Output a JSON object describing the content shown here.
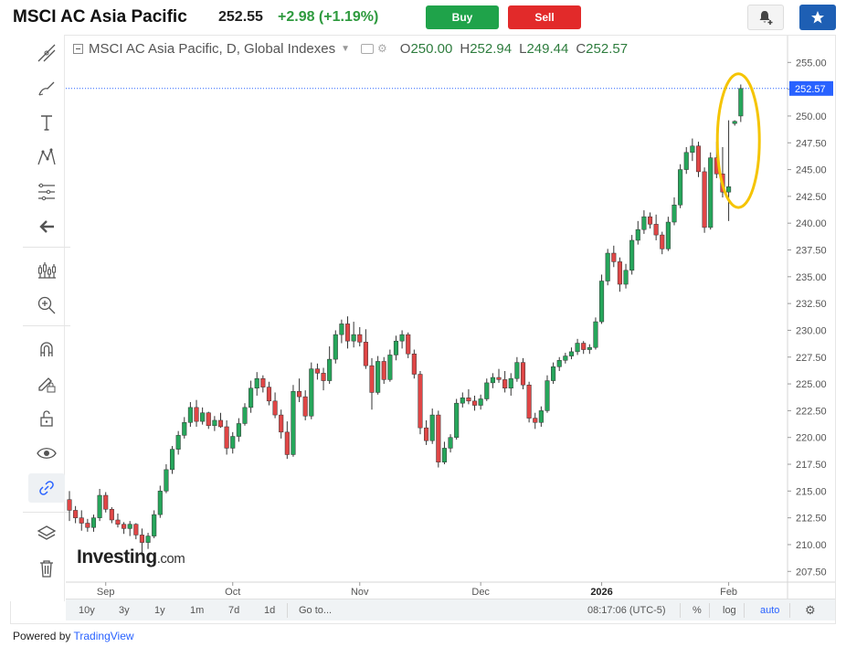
{
  "header": {
    "title": "MSCI AC Asia Pacific",
    "price": "252.55",
    "change": "+2.98 (+1.19%)",
    "buy_label": "Buy",
    "sell_label": "Sell"
  },
  "legend": {
    "symbol": "MSCI AC Asia Pacific, D, Global Indexes",
    "open_label": "O",
    "open": "250.00",
    "high_label": "H",
    "high": "252.94",
    "low_label": "L",
    "low": "249.44",
    "close_label": "C",
    "close": "252.57"
  },
  "logo": {
    "main": "Investing",
    "suffix": ".com"
  },
  "bottom_bar": {
    "ranges": [
      "10y",
      "3y",
      "1y",
      "1m",
      "7d",
      "1d"
    ],
    "goto_label": "Go to...",
    "time": "08:17:06 (UTC-5)",
    "percent_label": "%",
    "log_label": "log",
    "auto_label": "auto"
  },
  "powered_by": {
    "prefix": "Powered by ",
    "link": "TradingView"
  },
  "colors": {
    "up": "#26a65b",
    "down": "#e04646",
    "accent": "#2962ff",
    "highlight": "#f5c400"
  },
  "toolbar_icons": [
    "crosshair-draw-icon",
    "brush-icon",
    "text-icon",
    "pattern-icon",
    "fib-icon",
    "back-arrow-icon",
    "indicators-icon",
    "zoom-icon",
    "magnet-icon",
    "lock-drawing-icon",
    "unlock-icon",
    "eye-icon",
    "link-icon",
    "layers-icon",
    "trash-icon"
  ],
  "chart_data": {
    "type": "candlestick",
    "y_ticks": [
      "207.50",
      "210.00",
      "212.50",
      "215.00",
      "217.50",
      "220.00",
      "222.50",
      "225.00",
      "227.50",
      "230.00",
      "232.50",
      "235.00",
      "237.50",
      "240.00",
      "242.50",
      "245.00",
      "247.50",
      "250.00",
      "252.50",
      "255.00"
    ],
    "y_range": [
      206.5,
      257.5
    ],
    "x_labels": [
      "Sep",
      "Oct",
      "Nov",
      "Dec",
      "2026",
      "Feb"
    ],
    "x_label_index": [
      6,
      27,
      48,
      68,
      88,
      109
    ],
    "last_price_label": "252.57",
    "last_price": 252.57,
    "candles": [
      [
        214.2,
        215.0,
        212.2,
        213.2
      ],
      [
        213.2,
        213.6,
        212.0,
        212.5
      ],
      [
        212.5,
        213.2,
        211.3,
        212.0
      ],
      [
        212.0,
        212.4,
        211.2,
        211.6
      ],
      [
        211.6,
        212.8,
        211.2,
        212.5
      ],
      [
        212.5,
        215.2,
        212.2,
        214.6
      ],
      [
        214.6,
        214.9,
        213.0,
        213.3
      ],
      [
        213.3,
        213.5,
        212.0,
        212.3
      ],
      [
        212.3,
        212.9,
        211.6,
        211.9
      ],
      [
        211.9,
        212.1,
        211.0,
        211.5
      ],
      [
        211.5,
        212.2,
        210.8,
        211.9
      ],
      [
        211.9,
        212.0,
        210.5,
        210.9
      ],
      [
        210.9,
        211.5,
        209.2,
        210.2
      ],
      [
        210.2,
        211.1,
        209.6,
        210.8
      ],
      [
        210.8,
        213.2,
        210.6,
        212.8
      ],
      [
        212.8,
        215.5,
        212.5,
        215.0
      ],
      [
        215.0,
        217.5,
        214.8,
        217.0
      ],
      [
        217.0,
        219.2,
        216.6,
        218.9
      ],
      [
        218.9,
        220.6,
        218.4,
        220.2
      ],
      [
        220.2,
        221.9,
        219.9,
        221.4
      ],
      [
        221.4,
        223.3,
        221.0,
        222.8
      ],
      [
        222.8,
        223.5,
        221.0,
        221.5
      ],
      [
        221.5,
        222.8,
        221.2,
        222.3
      ],
      [
        222.3,
        222.4,
        220.8,
        221.1
      ],
      [
        221.1,
        222.0,
        220.6,
        221.6
      ],
      [
        221.6,
        222.3,
        220.9,
        221.0
      ],
      [
        221.0,
        221.6,
        218.4,
        219.0
      ],
      [
        219.0,
        220.5,
        218.5,
        220.1
      ],
      [
        220.1,
        221.8,
        219.6,
        221.3
      ],
      [
        221.3,
        223.2,
        221.1,
        222.8
      ],
      [
        222.8,
        225.3,
        222.3,
        224.6
      ],
      [
        224.6,
        226.1,
        223.9,
        225.5
      ],
      [
        225.5,
        225.8,
        224.2,
        224.7
      ],
      [
        224.7,
        225.2,
        223.0,
        223.4
      ],
      [
        223.4,
        224.2,
        221.8,
        222.1
      ],
      [
        222.1,
        222.6,
        219.9,
        220.5
      ],
      [
        220.5,
        221.5,
        218.0,
        218.4
      ],
      [
        218.4,
        224.9,
        218.2,
        224.3
      ],
      [
        224.3,
        225.5,
        223.3,
        223.8
      ],
      [
        223.8,
        224.4,
        221.6,
        222.0
      ],
      [
        222.0,
        227.0,
        221.7,
        226.4
      ],
      [
        226.4,
        226.9,
        225.4,
        226.0
      ],
      [
        226.0,
        226.5,
        224.4,
        225.3
      ],
      [
        225.3,
        228.5,
        225.0,
        227.3
      ],
      [
        227.3,
        230.0,
        226.9,
        229.6
      ],
      [
        229.6,
        231.0,
        228.8,
        230.6
      ],
      [
        230.6,
        231.3,
        228.3,
        229.0
      ],
      [
        229.0,
        230.8,
        228.4,
        229.6
      ],
      [
        229.6,
        230.3,
        228.5,
        228.9
      ],
      [
        228.9,
        230.1,
        226.4,
        226.7
      ],
      [
        226.7,
        227.4,
        222.6,
        224.2
      ],
      [
        224.2,
        227.6,
        224.0,
        227.1
      ],
      [
        227.1,
        227.5,
        225.0,
        225.4
      ],
      [
        225.4,
        228.2,
        225.2,
        227.7
      ],
      [
        227.7,
        229.5,
        227.2,
        229.0
      ],
      [
        229.0,
        230.0,
        228.3,
        229.6
      ],
      [
        229.6,
        229.8,
        227.4,
        227.8
      ],
      [
        227.8,
        228.2,
        225.5,
        225.9
      ],
      [
        225.9,
        226.2,
        220.3,
        220.9
      ],
      [
        220.9,
        221.6,
        219.3,
        219.7
      ],
      [
        219.7,
        222.7,
        219.4,
        222.1
      ],
      [
        222.1,
        222.5,
        217.2,
        217.7
      ],
      [
        217.7,
        219.6,
        217.5,
        219.0
      ],
      [
        219.0,
        220.3,
        218.6,
        220.0
      ],
      [
        220.0,
        223.6,
        219.8,
        223.2
      ],
      [
        223.2,
        224.2,
        222.8,
        223.7
      ],
      [
        223.7,
        224.5,
        223.1,
        223.4
      ],
      [
        223.4,
        223.9,
        222.5,
        223.0
      ],
      [
        223.0,
        224.0,
        222.6,
        223.6
      ],
      [
        223.6,
        225.5,
        223.4,
        225.1
      ],
      [
        225.1,
        226.0,
        224.6,
        225.6
      ],
      [
        225.6,
        226.4,
        225.1,
        225.4
      ],
      [
        225.4,
        226.2,
        224.2,
        224.6
      ],
      [
        224.6,
        226.0,
        223.9,
        225.5
      ],
      [
        225.5,
        227.5,
        225.2,
        227.0
      ],
      [
        227.0,
        227.4,
        224.5,
        224.9
      ],
      [
        224.9,
        225.2,
        221.4,
        221.8
      ],
      [
        221.8,
        222.3,
        220.8,
        221.4
      ],
      [
        221.4,
        222.9,
        221.0,
        222.5
      ],
      [
        222.5,
        225.8,
        222.3,
        225.3
      ],
      [
        225.3,
        227.0,
        225.0,
        226.6
      ],
      [
        226.6,
        227.5,
        226.2,
        227.2
      ],
      [
        227.2,
        227.9,
        226.9,
        227.6
      ],
      [
        227.6,
        228.4,
        227.3,
        228.0
      ],
      [
        228.0,
        229.2,
        227.7,
        228.8
      ],
      [
        228.8,
        229.0,
        227.8,
        228.2
      ],
      [
        228.2,
        228.7,
        227.8,
        228.4
      ],
      [
        228.4,
        231.2,
        228.2,
        230.8
      ],
      [
        230.8,
        235.2,
        230.6,
        234.6
      ],
      [
        234.6,
        237.6,
        234.2,
        237.2
      ],
      [
        237.2,
        237.9,
        235.9,
        236.4
      ],
      [
        236.4,
        236.8,
        233.6,
        234.3
      ],
      [
        234.3,
        236.2,
        233.9,
        235.6
      ],
      [
        235.6,
        238.9,
        235.2,
        238.4
      ],
      [
        238.4,
        240.2,
        238.0,
        239.4
      ],
      [
        239.4,
        241.2,
        239.0,
        240.6
      ],
      [
        240.6,
        241.0,
        239.5,
        239.9
      ],
      [
        239.9,
        240.8,
        238.4,
        238.9
      ],
      [
        238.9,
        239.2,
        237.1,
        237.6
      ],
      [
        237.6,
        240.6,
        237.4,
        240.1
      ],
      [
        240.1,
        242.4,
        239.8,
        241.7
      ],
      [
        241.7,
        245.5,
        241.4,
        245.0
      ],
      [
        245.0,
        247.1,
        244.6,
        246.6
      ],
      [
        246.6,
        247.9,
        245.8,
        247.2
      ],
      [
        247.2,
        247.6,
        244.3,
        244.8
      ],
      [
        244.8,
        245.2,
        239.1,
        239.6
      ],
      [
        239.6,
        246.6,
        239.4,
        246.1
      ],
      [
        246.1,
        247.6,
        244.2,
        244.6
      ],
      [
        244.6,
        247.1,
        242.4,
        242.9
      ],
      [
        242.9,
        249.6,
        240.2,
        243.4
      ],
      [
        249.3,
        249.6,
        249.1,
        249.5
      ],
      [
        250.0,
        252.94,
        249.44,
        252.57
      ]
    ]
  }
}
